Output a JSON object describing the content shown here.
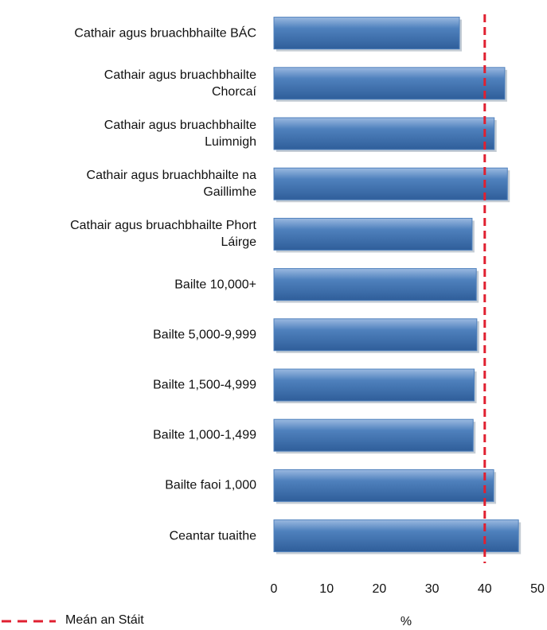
{
  "chart_data": {
    "type": "bar",
    "orientation": "horizontal",
    "categories": [
      "Cathair agus bruachbhailte BÁC",
      "Cathair agus bruachbhailte\nChorcaí",
      "Cathair agus bruachbhailte\nLuimnigh",
      "Cathair agus bruachbhailte na\nGaillimhe",
      "Cathair agus bruachbhailte Phort\nLáirge",
      "Bailte 10,000+",
      "Bailte 5,000-9,999",
      "Bailte 1,500-4,999",
      "Bailte 1,000-1,499",
      "Bailte faoi 1,000",
      "Ceantar tuaithe"
    ],
    "values": [
      35.2,
      43.8,
      41.8,
      44.3,
      37.6,
      38.4,
      38.5,
      38,
      37.8,
      41.7,
      46.4
    ],
    "color": "#4f81bd",
    "xlim": [
      0,
      50
    ],
    "xticks": [
      0,
      10,
      20,
      30,
      40,
      50
    ],
    "xlabel": "%",
    "reference_line": {
      "name": "Meán an Stáit",
      "value": 40,
      "color": "#e02030"
    },
    "grid": false
  }
}
